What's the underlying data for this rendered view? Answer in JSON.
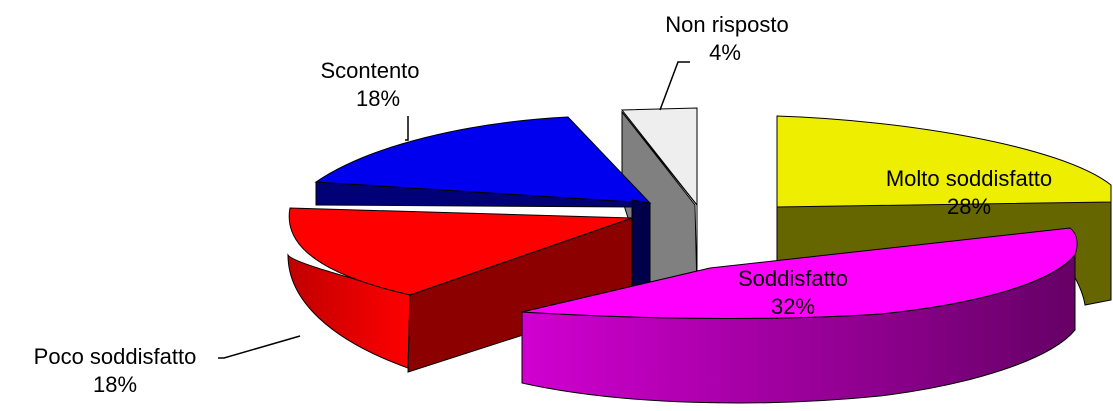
{
  "chart_data": {
    "type": "pie",
    "title": "",
    "slices": [
      {
        "label": "Molto soddisfatto",
        "value": 28,
        "value_label": "28%",
        "color": "#ffff00",
        "side_color": "#666600"
      },
      {
        "label": "Soddisfatto",
        "value": 32,
        "value_label": "32%",
        "color": "#ff00ff",
        "side_color": "#6b0066"
      },
      {
        "label": "Poco soddisfatto",
        "value": 18,
        "value_label": "18%",
        "color": "#ff0000",
        "side_color": "#990000"
      },
      {
        "label": "Scontento",
        "value": 18,
        "value_label": "18%",
        "color": "#0000ee",
        "side_color": "#000077"
      },
      {
        "label": "Non risposto",
        "value": 4,
        "value_label": "4%",
        "color": "#eeeeee",
        "side_color": "#808080"
      }
    ],
    "style": "3d-exploded",
    "legend": "none",
    "grid": false
  }
}
